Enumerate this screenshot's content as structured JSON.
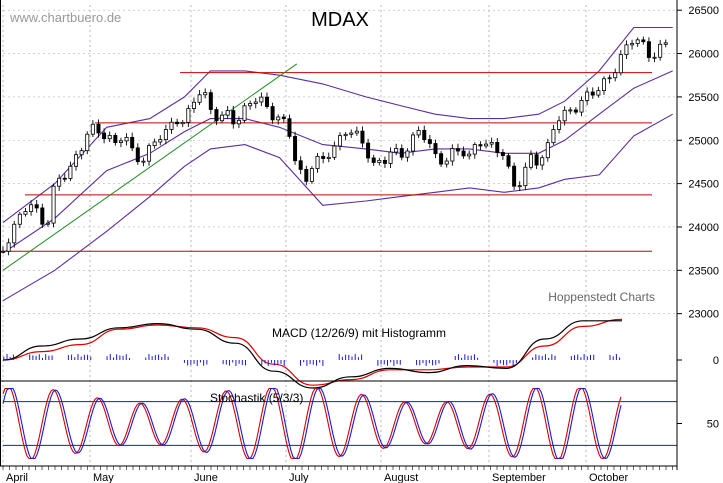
{
  "watermark": "www.chartbuero.de",
  "title": "MDAX",
  "credit": "Hoppenstedt Charts",
  "macd_label": "MACD (12/26/9) mit Histogramm",
  "stoch_label": "Stochastik (5/3/3)",
  "colors": {
    "price": "#000000",
    "bollinger": "#5a2ea0",
    "hline": "#cc0000",
    "trend": "#228b22",
    "macd": "#000000",
    "signal": "#dd0000",
    "histogram": "#1a1ad6",
    "stoch_k": "#dd0000",
    "stoch_d": "#1a1ad6",
    "stoch_level": "#1a1ad6"
  },
  "chart_data": [
    {
      "type": "candlestick",
      "title": "MDAX",
      "x_months": [
        "April",
        "May",
        "June",
        "July",
        "August",
        "September",
        "October"
      ],
      "y_ticks": [
        23000,
        23500,
        24000,
        24500,
        25000,
        25500,
        26000,
        26500
      ],
      "ylim": [
        22950,
        26560
      ],
      "horizontal_lines": [
        25780,
        25200,
        24370,
        23720
      ],
      "trend_line": {
        "from": [
          0,
          23500
        ],
        "to": [
          136,
          25880
        ]
      },
      "close_points": [
        [
          0,
          23720
        ],
        [
          4,
          23950
        ],
        [
          8,
          24120
        ],
        [
          12,
          24300
        ],
        [
          16,
          24150
        ],
        [
          20,
          23980
        ],
        [
          24,
          24500
        ],
        [
          28,
          24600
        ],
        [
          32,
          24700
        ],
        [
          36,
          24900
        ],
        [
          40,
          25150
        ],
        [
          44,
          25100
        ],
        [
          48,
          25050
        ],
        [
          52,
          24950
        ],
        [
          56,
          25100
        ],
        [
          60,
          24850
        ],
        [
          64,
          24750
        ],
        [
          68,
          24900
        ],
        [
          72,
          25050
        ],
        [
          76,
          25100
        ],
        [
          80,
          25250
        ],
        [
          84,
          25200
        ],
        [
          88,
          25450
        ],
        [
          92,
          25600
        ],
        [
          96,
          25350
        ],
        [
          100,
          25250
        ],
        [
          104,
          25300
        ],
        [
          108,
          25200
        ],
        [
          112,
          25350
        ],
        [
          116,
          25500
        ],
        [
          120,
          25450
        ],
        [
          124,
          25300
        ],
        [
          128,
          25250
        ],
        [
          132,
          25150
        ],
        [
          136,
          24700
        ],
        [
          140,
          24500
        ],
        [
          144,
          24800
        ],
        [
          148,
          24750
        ],
        [
          152,
          24900
        ],
        [
          156,
          25000
        ],
        [
          160,
          25150
        ],
        [
          164,
          25050
        ],
        [
          168,
          24900
        ],
        [
          172,
          24700
        ],
        [
          176,
          24750
        ],
        [
          180,
          24900
        ],
        [
          184,
          24800
        ],
        [
          188,
          24950
        ],
        [
          192,
          25100
        ],
        [
          196,
          25050
        ],
        [
          200,
          24800
        ],
        [
          204,
          24750
        ],
        [
          208,
          24850
        ],
        [
          212,
          24900
        ],
        [
          216,
          24800
        ],
        [
          220,
          25000
        ],
        [
          224,
          24950
        ],
        [
          228,
          24900
        ],
        [
          232,
          24850
        ],
        [
          236,
          24450
        ],
        [
          240,
          24550
        ],
        [
          244,
          24800
        ],
        [
          248,
          24750
        ],
        [
          252,
          24900
        ],
        [
          256,
          25250
        ],
        [
          260,
          25300
        ],
        [
          264,
          25350
        ],
        [
          268,
          25450
        ],
        [
          272,
          25550
        ],
        [
          276,
          25600
        ],
        [
          280,
          25700
        ],
        [
          284,
          25850
        ],
        [
          288,
          26050
        ],
        [
          292,
          26200
        ],
        [
          296,
          26100
        ],
        [
          300,
          25950
        ],
        [
          304,
          26050
        ],
        [
          308,
          26150
        ]
      ],
      "bollinger_upper": [
        [
          0,
          24050
        ],
        [
          24,
          24500
        ],
        [
          48,
          25150
        ],
        [
          68,
          25250
        ],
        [
          84,
          25500
        ],
        [
          96,
          25800
        ],
        [
          112,
          25800
        ],
        [
          128,
          25750
        ],
        [
          148,
          25650
        ],
        [
          168,
          25500
        ],
        [
          184,
          25400
        ],
        [
          200,
          25300
        ],
        [
          216,
          25250
        ],
        [
          232,
          25250
        ],
        [
          248,
          25300
        ],
        [
          260,
          25450
        ],
        [
          276,
          25800
        ],
        [
          292,
          26300
        ],
        [
          310,
          26300
        ]
      ],
      "bollinger_middle": [
        [
          0,
          23700
        ],
        [
          24,
          24100
        ],
        [
          48,
          24650
        ],
        [
          68,
          24850
        ],
        [
          84,
          25100
        ],
        [
          96,
          25250
        ],
        [
          112,
          25250
        ],
        [
          128,
          25150
        ],
        [
          148,
          24950
        ],
        [
          168,
          24900
        ],
        [
          184,
          24850
        ],
        [
          200,
          24900
        ],
        [
          216,
          24900
        ],
        [
          232,
          24850
        ],
        [
          248,
          24850
        ],
        [
          260,
          25000
        ],
        [
          276,
          25300
        ],
        [
          292,
          25600
        ],
        [
          310,
          25800
        ]
      ],
      "bollinger_lower": [
        [
          0,
          23150
        ],
        [
          24,
          23500
        ],
        [
          48,
          23950
        ],
        [
          68,
          24350
        ],
        [
          84,
          24700
        ],
        [
          96,
          24900
        ],
        [
          112,
          24950
        ],
        [
          128,
          24800
        ],
        [
          148,
          24250
        ],
        [
          168,
          24300
        ],
        [
          184,
          24350
        ],
        [
          200,
          24400
        ],
        [
          216,
          24450
        ],
        [
          232,
          24400
        ],
        [
          248,
          24450
        ],
        [
          260,
          24550
        ],
        [
          276,
          24600
        ],
        [
          292,
          25050
        ],
        [
          310,
          25300
        ]
      ]
    },
    {
      "type": "line",
      "title": "MACD (12/26/9) mit Histogramm",
      "y_ticks": [
        0
      ],
      "series": [
        {
          "values": [
            0,
            100,
            150,
            230,
            260,
            220,
            120,
            -80,
            -200,
            -120,
            -60,
            -90,
            -40,
            -60,
            150,
            280,
            280
          ]
        },
        {
          "values": [
            0,
            60,
            110,
            220,
            250,
            230,
            160,
            -30,
            -180,
            -140,
            -70,
            -70,
            -50,
            -50,
            100,
            240,
            290
          ]
        }
      ],
      "histogram_sign": [
        "+",
        "+",
        "+",
        "+",
        "+",
        "-",
        "-",
        "-",
        "-",
        "+",
        "-",
        "-",
        "+",
        "-",
        "+",
        "+",
        "+"
      ]
    },
    {
      "type": "line",
      "title": "Stochastik (5/3/3)",
      "y_ticks": [
        50
      ],
      "levels": [
        80,
        20
      ],
      "ylim": [
        0,
        100
      ]
    }
  ]
}
